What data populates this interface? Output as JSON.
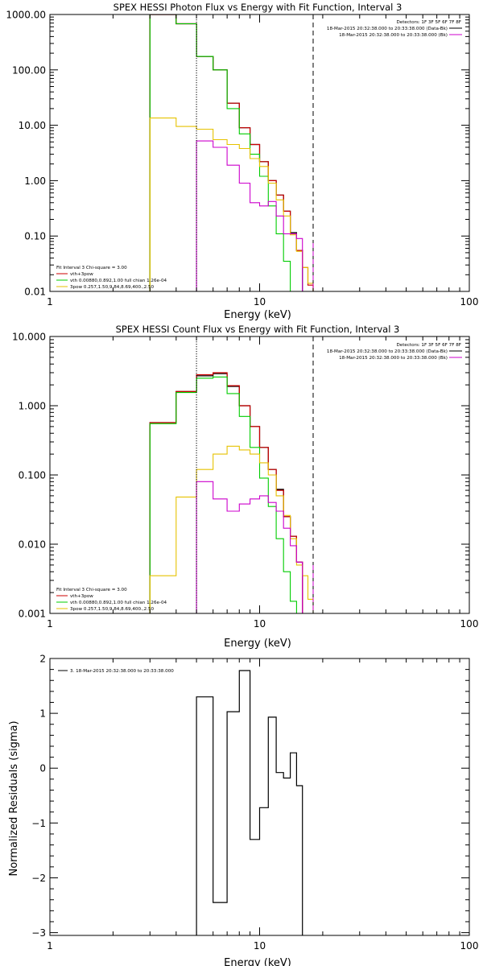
{
  "chart_data": [
    {
      "type": "line",
      "title": "SPEX HESSI Photon Flux vs Energy with Fit Function, Interval 3",
      "xlabel": "Energy (keV)",
      "ylabel": "",
      "xscale": "log",
      "yscale": "log",
      "xlim": [
        1,
        100
      ],
      "ylim": [
        0.01,
        1000
      ],
      "xticks": [
        {
          "v": 1,
          "label": "1"
        },
        {
          "v": 10,
          "label": "10"
        },
        {
          "v": 100,
          "label": "100"
        }
      ],
      "yticks": [
        {
          "v": 0.01,
          "label": "0.01"
        },
        {
          "v": 0.1,
          "label": "0.10"
        },
        {
          "v": 1,
          "label": "1.00"
        },
        {
          "v": 10,
          "label": "10.00"
        },
        {
          "v": 100,
          "label": "100.00"
        },
        {
          "v": 1000,
          "label": "1000.00"
        }
      ],
      "vlines": [
        {
          "x": 5.0,
          "style": "dotted",
          "color": "#000000"
        },
        {
          "x": 18.0,
          "style": "dashed",
          "color": "#000000"
        }
      ],
      "info_right": [
        {
          "text": "Detectors: 1F 3F 5F 6F 7F 8F",
          "color": null
        },
        {
          "text": "18-Mar-2015 20:32:38.000 to 20:33:38.000 (Data-Bk)",
          "color": "#000000"
        },
        {
          "text": "18-Mar-2015 20:32:38.000 to 20:33:38.000 (Bk)",
          "color": "#cc00cc"
        }
      ],
      "fit_info": [
        {
          "text": "Fit Interval 3   Chi-square = 3.00",
          "color": null
        },
        {
          "text": "vth+3pow",
          "color": "#cc0000"
        },
        {
          "text": "vth 0.00880,0.892,1.00   full chian 1.26e-04",
          "color": "#00cc00"
        },
        {
          "text": "3pow 0.257,1.50,9.84,8.69,400.,2.50",
          "color": "#e6c200"
        }
      ],
      "edges": [
        3,
        4,
        5,
        6,
        7,
        8,
        9,
        10,
        11,
        12,
        13,
        14,
        15,
        16,
        17,
        18,
        20,
        22,
        24
      ],
      "series": [
        {
          "name": "Data-Bk",
          "color": "#000000",
          "width": 1.2,
          "values": [
            1000,
            680,
            175,
            100,
            25,
            9,
            4.5,
            2.2,
            1.0,
            0.55,
            0.28,
            0.115,
            0.055,
            null,
            null,
            null,
            null,
            null
          ]
        },
        {
          "name": "vth+3pow",
          "color": "#cc0000",
          "width": 1.2,
          "values": [
            1000,
            680,
            175,
            100,
            25,
            9,
            4.5,
            2.2,
            1.0,
            0.55,
            0.28,
            0.11,
            0.055,
            0.027,
            0.013,
            null,
            null,
            null
          ]
        },
        {
          "name": "vth",
          "color": "#00cc00",
          "width": 1.1,
          "values": [
            1000,
            680,
            175,
            100,
            20,
            7.0,
            3.0,
            1.2,
            0.35,
            0.11,
            0.035,
            0.01,
            0.003,
            null,
            null,
            null,
            null,
            null
          ]
        },
        {
          "name": "3pow",
          "color": "#e6c200",
          "width": 1.1,
          "values": [
            13.5,
            9.5,
            8.5,
            5.5,
            4.5,
            3.8,
            2.5,
            1.8,
            0.9,
            0.45,
            0.23,
            0.105,
            0.053,
            0.027,
            0.014,
            null,
            null,
            null
          ]
        },
        {
          "name": "Bk",
          "color": "#cc00cc",
          "width": 1.1,
          "values": [
            null,
            null,
            5.2,
            4.0,
            1.9,
            0.9,
            0.4,
            0.35,
            0.42,
            0.23,
            0.11,
            0.11,
            0.09,
            null,
            null,
            null,
            null,
            null
          ]
        }
      ]
    },
    {
      "type": "line",
      "title": "SPEX HESSI Count Flux vs Energy with Fit Function, Interval 3",
      "xlabel": "Energy (keV)",
      "ylabel": "",
      "xscale": "log",
      "yscale": "log",
      "xlim": [
        1,
        100
      ],
      "ylim": [
        0.001,
        10
      ],
      "xticks": [
        {
          "v": 1,
          "label": "1"
        },
        {
          "v": 10,
          "label": "10"
        },
        {
          "v": 100,
          "label": "100"
        }
      ],
      "yticks": [
        {
          "v": 0.001,
          "label": "0.001"
        },
        {
          "v": 0.01,
          "label": "0.010"
        },
        {
          "v": 0.1,
          "label": "0.100"
        },
        {
          "v": 1,
          "label": "1.000"
        },
        {
          "v": 10,
          "label": "10.000"
        }
      ],
      "vlines": [
        {
          "x": 5.0,
          "style": "dotted",
          "color": "#000000"
        },
        {
          "x": 18.0,
          "style": "dashed",
          "color": "#000000"
        }
      ],
      "info_right": [
        {
          "text": "Detectors: 1F 3F 5F 6F 7F 8F",
          "color": null
        },
        {
          "text": "18-Mar-2015 20:32:38.000 to 20:33:38.000 (Data-Bk)",
          "color": "#000000"
        },
        {
          "text": "18-Mar-2015 20:32:38.000 to 20:33:38.000 (Bk)",
          "color": "#cc00cc"
        }
      ],
      "fit_info": [
        {
          "text": "Fit Interval 3   Chi-square = 3.00",
          "color": null
        },
        {
          "text": "vth+3pow",
          "color": "#cc0000"
        },
        {
          "text": "vth 0.00880,0.892,1.00   full chian 1.26e-04",
          "color": "#00cc00"
        },
        {
          "text": "3pow 0.257,1.50,9.84,8.69,400.,2.50",
          "color": "#e6c200"
        }
      ],
      "edges": [
        3,
        4,
        5,
        6,
        7,
        8,
        9,
        10,
        11,
        12,
        13,
        14,
        15,
        16,
        17,
        18,
        20,
        22,
        24
      ],
      "series": [
        {
          "name": "Data-Bk",
          "color": "#000000",
          "width": 1.2,
          "values": [
            0.57,
            1.6,
            2.7,
            2.9,
            1.9,
            1.0,
            0.5,
            0.25,
            0.12,
            0.062,
            0.025,
            0.013,
            0.0055,
            null,
            null,
            null,
            null,
            null
          ]
        },
        {
          "name": "vth+3pow",
          "color": "#cc0000",
          "width": 1.2,
          "values": [
            0.57,
            1.6,
            2.8,
            3.0,
            1.95,
            1.0,
            0.5,
            0.25,
            0.12,
            0.06,
            0.025,
            0.013,
            0.0055,
            null,
            null,
            null,
            null,
            null
          ]
        },
        {
          "name": "vth",
          "color": "#00cc00",
          "width": 1.1,
          "values": [
            0.55,
            1.55,
            2.5,
            2.6,
            1.5,
            0.7,
            0.25,
            0.09,
            0.035,
            0.012,
            0.004,
            0.0015,
            0.0005,
            null,
            null,
            null,
            null,
            null
          ]
        },
        {
          "name": "3pow",
          "color": "#e6c200",
          "width": 1.1,
          "values": [
            0.0035,
            0.048,
            0.12,
            0.2,
            0.26,
            0.23,
            0.2,
            0.15,
            0.1,
            0.05,
            0.026,
            0.012,
            0.005,
            0.0035,
            0.0016,
            null,
            null,
            null
          ]
        },
        {
          "name": "Bk",
          "color": "#cc00cc",
          "width": 1.1,
          "values": [
            null,
            null,
            0.08,
            0.045,
            0.03,
            0.038,
            0.045,
            0.05,
            0.04,
            0.03,
            0.017,
            0.0095,
            0.0055,
            null,
            null,
            null,
            null,
            null
          ]
        }
      ]
    },
    {
      "type": "line",
      "title": "",
      "xlabel": "Energy (keV)",
      "ylabel": "Normalized Residuals (sigma)",
      "xscale": "log",
      "yscale": "linear",
      "xlim": [
        1,
        100
      ],
      "ylim": [
        -3.05,
        2
      ],
      "xticks": [
        {
          "v": 1,
          "label": "1"
        },
        {
          "v": 10,
          "label": "10"
        },
        {
          "v": 100,
          "label": "100"
        }
      ],
      "yticks": [
        {
          "v": -3,
          "label": "−3"
        },
        {
          "v": -2,
          "label": "−2"
        },
        {
          "v": -1,
          "label": "−1"
        },
        {
          "v": 0,
          "label": "0"
        },
        {
          "v": 1,
          "label": "1"
        },
        {
          "v": 2,
          "label": "2"
        }
      ],
      "legend": "3. 18-Mar-2015 20:32:38.000 to 20:33:38.000",
      "edges": [
        5,
        6,
        7,
        8,
        9,
        10,
        11,
        12,
        13,
        14,
        15,
        16,
        17,
        18
      ],
      "series": [
        {
          "name": "3. 18-Mar-2015 20:32:38.000 to 20:33:38.000",
          "color": "#000000",
          "width": 1.2,
          "values": [
            1.3,
            -2.45,
            1.03,
            1.78,
            -1.3,
            -0.72,
            0.93,
            -0.08,
            -0.18,
            0.28,
            -0.32,
            null,
            null
          ]
        }
      ]
    }
  ]
}
